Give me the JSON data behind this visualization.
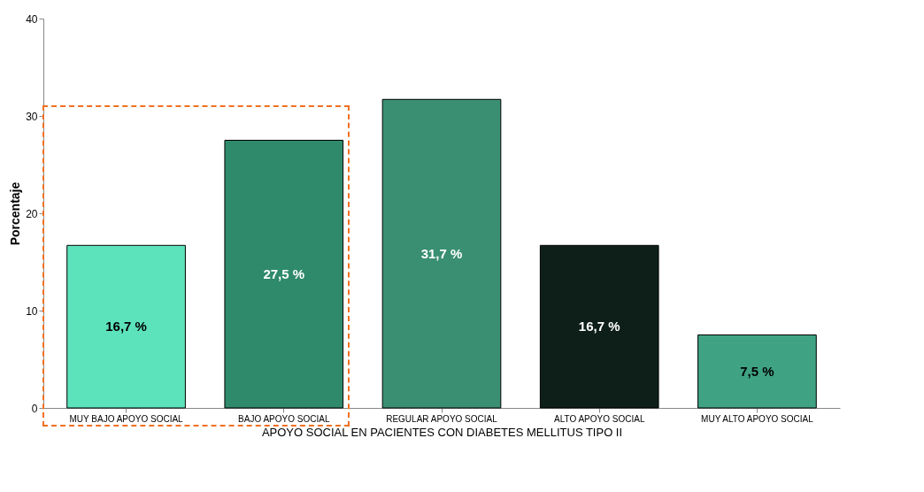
{
  "chart_data": {
    "type": "bar",
    "xlabel": "APOYO SOCIAL EN PACIENTES CON DIABETES MELLITUS TIPO II",
    "ylabel": "Porcentaje",
    "categories": [
      "MUY BAJO APOYO SOCIAL",
      "BAJO APOYO SOCIAL",
      "REGULAR APOYO SOCIAL",
      "ALTO APOYO SOCIAL",
      "MUY ALTO APOYO SOCIAL"
    ],
    "values": [
      16.7,
      27.5,
      31.7,
      16.7,
      7.5
    ],
    "value_labels": [
      "16,7 %",
      "27,5 %",
      "31,7 %",
      "16,7 %",
      "7,5 %"
    ],
    "colors": [
      "#5ce3bb",
      "#2f8a6c",
      "#3a8f72",
      "#0d1f18",
      "#3fa383"
    ],
    "ylim": [
      0,
      40
    ],
    "yticks": [
      0,
      10,
      20,
      30,
      40
    ],
    "grid": false,
    "legend": false
  }
}
